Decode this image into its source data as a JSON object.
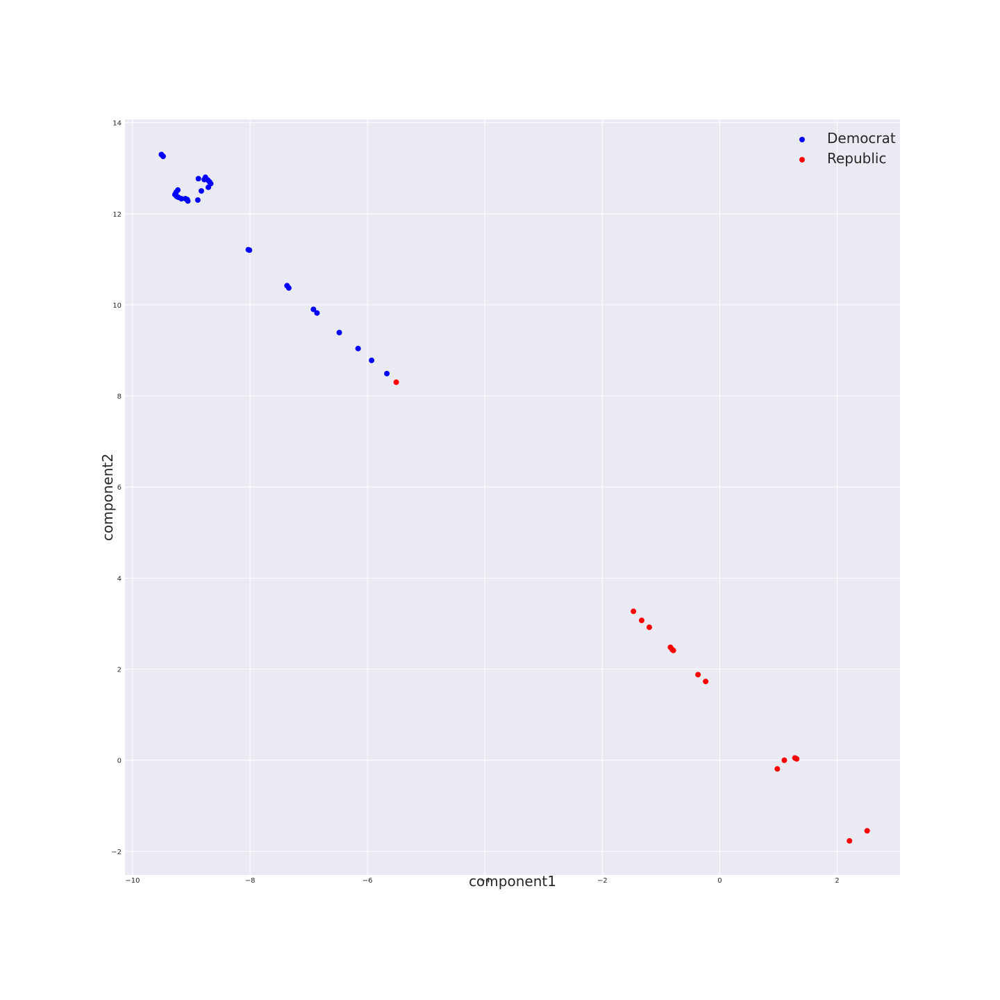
{
  "chart_data": {
    "type": "scatter",
    "title": "",
    "xlabel": "component1",
    "ylabel": "component2",
    "xlim": [
      -10.13,
      3.07
    ],
    "ylim": [
      -2.52,
      14.07
    ],
    "xticks": [
      -10,
      -8,
      -6,
      -4,
      -2,
      0,
      2
    ],
    "yticks": [
      -2,
      0,
      2,
      4,
      6,
      8,
      10,
      12,
      14
    ],
    "xtick_labels": [
      "−10",
      "−8",
      "−6",
      "−4",
      "−2",
      "0",
      "2"
    ],
    "ytick_labels": [
      "−2",
      "0",
      "2",
      "4",
      "6",
      "8",
      "10",
      "12",
      "14"
    ],
    "grid": true,
    "legend_position": "top-right",
    "colors": {
      "plot_background": "#eaeaf2",
      "grid": "#ffffff",
      "text": "#262626"
    },
    "series": [
      {
        "name": "Democrat",
        "color": "#0000ff",
        "points": [
          [
            -9.51,
            13.3
          ],
          [
            -9.48,
            13.26
          ],
          [
            -9.23,
            12.52
          ],
          [
            -9.26,
            12.47
          ],
          [
            -9.28,
            12.42
          ],
          [
            -9.25,
            12.38
          ],
          [
            -9.22,
            12.36
          ],
          [
            -9.17,
            12.33
          ],
          [
            -9.1,
            12.33
          ],
          [
            -9.07,
            12.31
          ],
          [
            -9.06,
            12.28
          ],
          [
            -8.88,
            12.77
          ],
          [
            -8.89,
            12.3
          ],
          [
            -8.83,
            12.5
          ],
          [
            -8.76,
            12.8
          ],
          [
            -8.78,
            12.75
          ],
          [
            -8.72,
            12.74
          ],
          [
            -8.69,
            12.7
          ],
          [
            -8.67,
            12.66
          ],
          [
            -8.71,
            12.58
          ],
          [
            -8.03,
            11.21
          ],
          [
            -8.01,
            11.2
          ],
          [
            -7.37,
            10.42
          ],
          [
            -7.34,
            10.37
          ],
          [
            -6.92,
            9.9
          ],
          [
            -6.86,
            9.82
          ],
          [
            -6.48,
            9.39
          ],
          [
            -6.16,
            9.04
          ],
          [
            -5.93,
            8.78
          ],
          [
            -5.67,
            8.49
          ]
        ]
      },
      {
        "name": "Republic",
        "color": "#ff0000",
        "points": [
          [
            -5.51,
            8.3
          ],
          [
            -1.47,
            3.27
          ],
          [
            -1.33,
            3.07
          ],
          [
            -1.2,
            2.92
          ],
          [
            -0.84,
            2.48
          ],
          [
            -0.81,
            2.43
          ],
          [
            -0.79,
            2.41
          ],
          [
            -0.37,
            1.88
          ],
          [
            -0.24,
            1.73
          ],
          [
            0.98,
            -0.19
          ],
          [
            1.1,
            0.0
          ],
          [
            1.28,
            0.05
          ],
          [
            1.31,
            0.03
          ],
          [
            2.21,
            -1.77
          ],
          [
            2.51,
            -1.55
          ]
        ]
      }
    ]
  }
}
